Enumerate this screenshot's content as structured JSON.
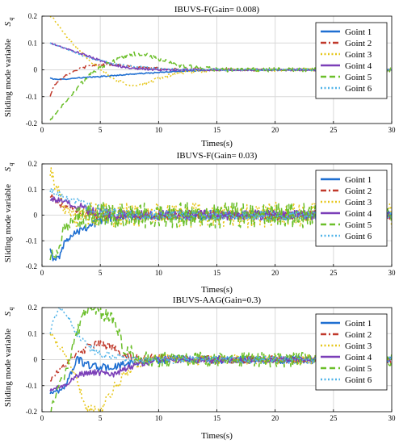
{
  "colors": {
    "goint1": "#1f6fd1",
    "goint2": "#c0392b",
    "goint3": "#e6c619",
    "goint4": "#7b3fb8",
    "goint5": "#6bbf2a",
    "goint6": "#4fb3e8",
    "grid": "#d9d9d9"
  },
  "chart_data": [
    {
      "type": "line",
      "title": "IBUVS-F(Gain= 0.008)",
      "xlabel": "Times(s)",
      "ylabel": "Sliding mode variable",
      "ylabel_symbol": "S",
      "ylabel_sub": "q",
      "xlim": [
        0,
        30
      ],
      "ylim": [
        -0.2,
        0.2
      ],
      "xticks": [
        "0",
        "5",
        "10",
        "15",
        "20",
        "25",
        "30"
      ],
      "yticks": [
        "-0.2",
        "-0.1",
        "0",
        "0.1",
        "0.2"
      ],
      "grid": true,
      "legend_position": "top-right",
      "series": [
        {
          "name": "Goint 1",
          "style": "solid",
          "noise": 0.002,
          "x": [
            0.7,
            1,
            2,
            3,
            4,
            5,
            6,
            8,
            10,
            12,
            15,
            20,
            25,
            30
          ],
          "y": [
            -0.03,
            -0.035,
            -0.035,
            -0.03,
            -0.028,
            -0.025,
            -0.022,
            -0.015,
            -0.01,
            -0.005,
            0,
            0,
            0,
            0
          ]
        },
        {
          "name": "Goint 2",
          "style": "dashdot",
          "noise": 0.004,
          "x": [
            0.7,
            1,
            1.5,
            2,
            3,
            4,
            5,
            6,
            8,
            10,
            12,
            15,
            20,
            25,
            30
          ],
          "y": [
            -0.1,
            -0.06,
            -0.04,
            -0.02,
            0,
            0.015,
            0.02,
            0.02,
            0.01,
            0.005,
            0.002,
            0,
            0,
            0,
            0
          ]
        },
        {
          "name": "Goint 3",
          "style": "dotted",
          "noise": 0.006,
          "x": [
            0.7,
            1,
            1.5,
            2,
            3,
            4,
            5,
            6,
            7,
            8,
            9,
            10,
            11,
            12,
            14,
            16,
            20,
            30
          ],
          "y": [
            0.2,
            0.19,
            0.16,
            0.13,
            0.08,
            0.04,
            0,
            -0.03,
            -0.05,
            -0.06,
            -0.05,
            -0.03,
            -0.02,
            -0.01,
            -0.005,
            0,
            0,
            0
          ]
        },
        {
          "name": "Goint 4",
          "style": "solid",
          "noise": 0.004,
          "x": [
            0.7,
            1,
            2,
            3,
            4,
            5,
            6,
            7,
            8,
            10,
            12,
            15,
            20,
            30
          ],
          "y": [
            0.1,
            0.095,
            0.08,
            0.065,
            0.05,
            0.035,
            0.02,
            0.01,
            0.005,
            0,
            0,
            0,
            0,
            0
          ]
        },
        {
          "name": "Goint 5",
          "style": "dashed",
          "noise": 0.008,
          "x": [
            0.7,
            1,
            2,
            3,
            4,
            5,
            6,
            7,
            8,
            9,
            10,
            11,
            12,
            14,
            16,
            20,
            30
          ],
          "y": [
            -0.19,
            -0.17,
            -0.12,
            -0.07,
            -0.02,
            0.01,
            0.03,
            0.05,
            0.06,
            0.055,
            0.04,
            0.025,
            0.015,
            0.005,
            0,
            0,
            0
          ]
        },
        {
          "name": "Goint 6",
          "style": "dotted",
          "noise": 0.003,
          "x": [
            0.7,
            1,
            2,
            3,
            4,
            5,
            6,
            8,
            10,
            12,
            15,
            20,
            30
          ],
          "y": [
            0.1,
            0.095,
            0.08,
            0.06,
            0.045,
            0.035,
            0.025,
            0.012,
            0.005,
            0.002,
            0,
            0,
            0
          ]
        }
      ]
    },
    {
      "type": "line",
      "title": "IBUVS-F(Gain= 0.03)",
      "xlabel": "Times(s)",
      "ylabel": "Sliding mode variable",
      "ylabel_symbol": "S",
      "ylabel_sub": "q",
      "xlim": [
        0,
        30
      ],
      "ylim": [
        -0.2,
        0.2
      ],
      "xticks": [
        "0",
        "5",
        "10",
        "15",
        "20",
        "25",
        "30"
      ],
      "yticks": [
        "-0.2",
        "-0.1",
        "0",
        "0.1",
        "0.2"
      ],
      "grid": true,
      "legend_position": "top-right",
      "series": [
        {
          "name": "Goint 1",
          "style": "solid",
          "noise": 0.018,
          "x": [
            0.7,
            1,
            1.5,
            2,
            3,
            4,
            5,
            6,
            7,
            10,
            15,
            20,
            25,
            30
          ],
          "y": [
            -0.12,
            -0.18,
            -0.16,
            -0.1,
            -0.06,
            -0.04,
            -0.02,
            -0.01,
            0,
            0,
            0,
            0,
            0,
            0
          ]
        },
        {
          "name": "Goint 2",
          "style": "dashdot",
          "noise": 0.02,
          "x": [
            0.7,
            1,
            1.5,
            2,
            3,
            4,
            5,
            6,
            7,
            10,
            15,
            20,
            25,
            30
          ],
          "y": [
            0.08,
            0.06,
            0.04,
            0.03,
            0.02,
            0.01,
            0.005,
            0,
            0,
            0,
            0,
            0,
            0,
            0
          ]
        },
        {
          "name": "Goint 3",
          "style": "dotted",
          "noise": 0.05,
          "x": [
            0.7,
            1,
            1.5,
            2,
            3,
            4,
            5,
            6,
            7,
            10,
            15,
            20,
            25,
            30
          ],
          "y": [
            0.18,
            0.14,
            0.08,
            0.03,
            -0.02,
            0,
            0,
            0,
            0,
            0,
            0,
            0,
            0,
            0
          ]
        },
        {
          "name": "Goint 4",
          "style": "solid",
          "noise": 0.02,
          "x": [
            0.7,
            1,
            2,
            3,
            4,
            5,
            6,
            7,
            10,
            15,
            20,
            25,
            30
          ],
          "y": [
            0.07,
            0.06,
            0.05,
            0.035,
            0.02,
            0.01,
            0.005,
            0,
            0,
            0,
            0,
            0,
            0
          ]
        },
        {
          "name": "Goint 5",
          "style": "dashed",
          "noise": 0.05,
          "x": [
            0.7,
            1,
            1.5,
            2,
            3,
            4,
            5,
            6,
            7,
            10,
            15,
            20,
            25,
            30
          ],
          "y": [
            -0.15,
            -0.17,
            -0.1,
            -0.05,
            -0.02,
            0,
            0,
            0,
            0,
            0,
            0,
            0,
            0,
            0
          ]
        },
        {
          "name": "Goint 6",
          "style": "dotted",
          "noise": 0.02,
          "x": [
            0.7,
            1,
            2,
            3,
            4,
            5,
            6,
            7,
            10,
            15,
            20,
            25,
            30
          ],
          "y": [
            0.1,
            0.09,
            0.07,
            0.05,
            0.03,
            0.02,
            0.01,
            0,
            0,
            0,
            0,
            0,
            0
          ]
        }
      ]
    },
    {
      "type": "line",
      "title": "IBUVS-AAG(Gain=0.3)",
      "xlabel": "Times(s)",
      "ylabel": "Sliding mode variable",
      "ylabel_symbol": "S",
      "ylabel_sub": "q",
      "xlim": [
        0,
        30
      ],
      "ylim": [
        -0.2,
        0.2
      ],
      "xticks": [
        "0",
        "5",
        "10",
        "15",
        "20",
        "25",
        "30"
      ],
      "yticks": [
        "-0.2",
        "-0.1",
        "0",
        "0.1",
        "0.2"
      ],
      "grid": true,
      "legend_position": "top-right",
      "series": [
        {
          "name": "Goint 1",
          "style": "solid",
          "noise": 0.015,
          "x": [
            0.7,
            1,
            1.5,
            2,
            2.5,
            3,
            4,
            5,
            6,
            8,
            10,
            15,
            20,
            25,
            30
          ],
          "y": [
            -0.13,
            -0.12,
            -0.12,
            -0.1,
            -0.05,
            0,
            -0.02,
            -0.03,
            -0.03,
            -0.01,
            0,
            0,
            0,
            0,
            0
          ]
        },
        {
          "name": "Goint 2",
          "style": "dashdot",
          "noise": 0.015,
          "x": [
            0.7,
            1,
            2,
            3,
            4,
            5,
            6,
            7,
            8,
            10,
            12,
            15,
            20,
            30
          ],
          "y": [
            -0.08,
            -0.06,
            -0.02,
            0.02,
            0.05,
            0.06,
            0.05,
            0.02,
            0.01,
            0.005,
            0,
            0,
            0,
            0
          ]
        },
        {
          "name": "Goint 3",
          "style": "dotted",
          "noise": 0.02,
          "x": [
            0.7,
            1,
            2,
            3,
            3.5,
            4,
            5,
            6,
            7,
            8,
            9,
            10,
            12,
            15,
            20,
            30
          ],
          "y": [
            0.1,
            0.08,
            0.02,
            -0.08,
            -0.15,
            -0.19,
            -0.2,
            -0.12,
            -0.06,
            -0.02,
            0,
            0.01,
            0,
            0,
            0,
            0
          ]
        },
        {
          "name": "Goint 4",
          "style": "solid",
          "noise": 0.012,
          "x": [
            0.7,
            1,
            2,
            3,
            4,
            5,
            6,
            7,
            8,
            10,
            12,
            15,
            20,
            30
          ],
          "y": [
            -0.12,
            -0.11,
            -0.1,
            -0.06,
            -0.05,
            -0.05,
            -0.06,
            -0.04,
            -0.02,
            0,
            0,
            0,
            0,
            0
          ]
        },
        {
          "name": "Goint 5",
          "style": "dashed",
          "noise": 0.03,
          "x": [
            0.7,
            1,
            2,
            3,
            3.5,
            4,
            5,
            6,
            7,
            8,
            9,
            10,
            12,
            15,
            20,
            30
          ],
          "y": [
            -0.2,
            -0.15,
            -0.05,
            0.1,
            0.17,
            0.2,
            0.18,
            0.16,
            0.05,
            0.02,
            0,
            0,
            0,
            0,
            0,
            0
          ]
        },
        {
          "name": "Goint 6",
          "style": "dotted",
          "noise": 0.015,
          "x": [
            0.7,
            1,
            1.5,
            2,
            3,
            4,
            5,
            6,
            8,
            10,
            15,
            20,
            30
          ],
          "y": [
            0.1,
            0.15,
            0.2,
            0.18,
            0.1,
            0.05,
            0.02,
            0.01,
            0,
            0,
            0,
            0,
            0
          ]
        }
      ]
    }
  ]
}
